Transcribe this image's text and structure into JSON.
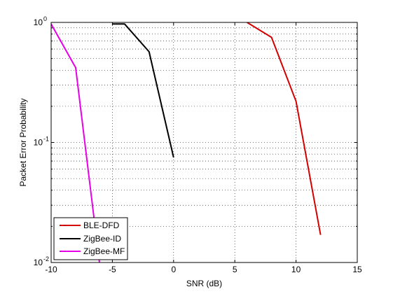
{
  "chart_data": {
    "type": "line",
    "title": "",
    "xlabel": "SNR (dB)",
    "ylabel": "Packet Error Probability",
    "xlim": [
      -10,
      15
    ],
    "ylim": [
      0.01,
      1
    ],
    "yscale": "log",
    "grid": true,
    "legend_position": "bottom-left",
    "x_ticks": [
      {
        "value": -10,
        "label": "-10"
      },
      {
        "value": -5,
        "label": "-5"
      },
      {
        "value": 0,
        "label": "0"
      },
      {
        "value": 5,
        "label": "5"
      },
      {
        "value": 10,
        "label": "10"
      },
      {
        "value": 15,
        "label": "15"
      }
    ],
    "y_ticks": [
      {
        "value": 0.01,
        "base": "10",
        "exp": "-2"
      },
      {
        "value": 0.1,
        "base": "10",
        "exp": "-1"
      },
      {
        "value": 1,
        "base": "10",
        "exp": "0"
      }
    ],
    "series": [
      {
        "name": "BLE-DFD",
        "color": "#d40000",
        "x": [
          6,
          8,
          10,
          12
        ],
        "y": [
          1.0,
          0.75,
          0.22,
          0.017
        ]
      },
      {
        "name": "ZigBee-ID",
        "color": "#000000",
        "x": [
          -5,
          -4,
          -2,
          0
        ],
        "y": [
          0.97,
          0.97,
          0.57,
          0.075
        ]
      },
      {
        "name": "ZigBee-MF",
        "color": "#e600e6",
        "x": [
          -10,
          -8,
          -6
        ],
        "y": [
          0.97,
          0.42,
          0.009
        ]
      }
    ]
  }
}
